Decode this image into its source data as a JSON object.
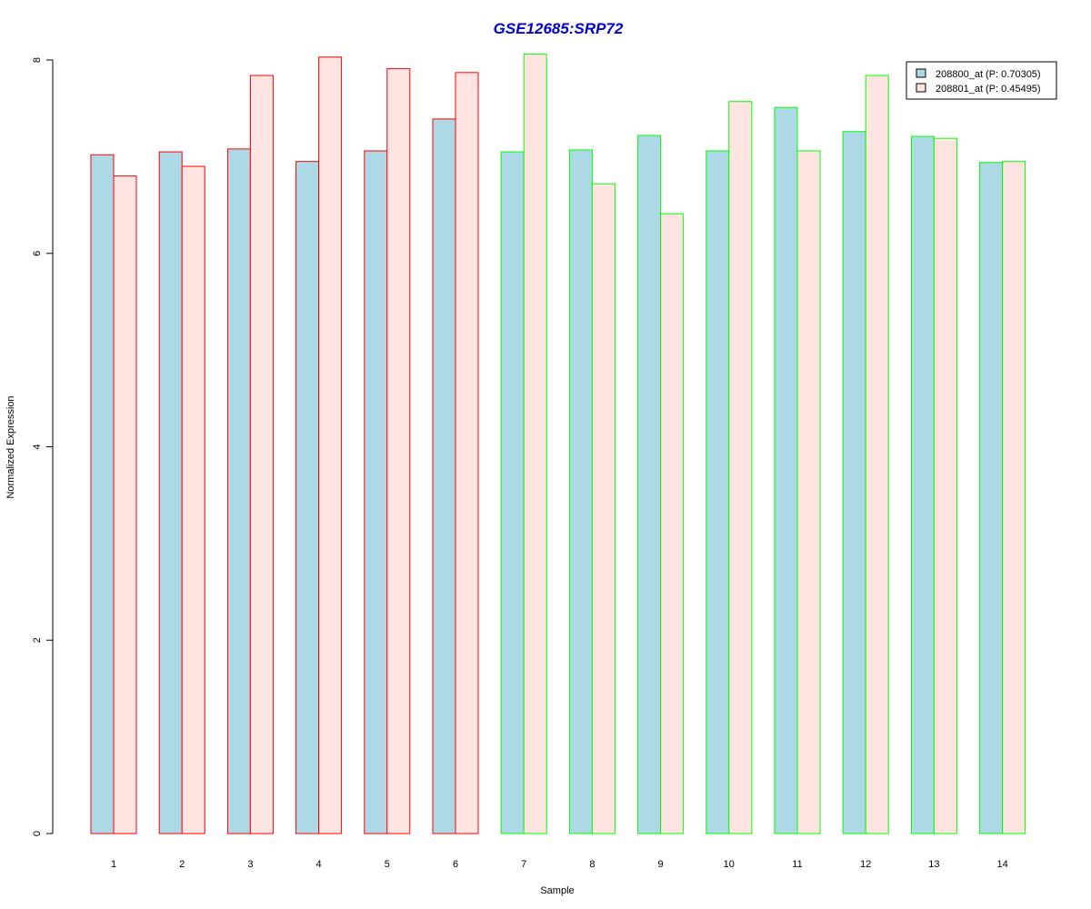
{
  "chart_data": {
    "type": "bar",
    "title": "GSE12685:SRP72",
    "xlabel": "Sample",
    "ylabel": "Normalized Expression",
    "categories": [
      "1",
      "2",
      "3",
      "4",
      "5",
      "6",
      "7",
      "8",
      "9",
      "10",
      "11",
      "12",
      "13",
      "14"
    ],
    "series": [
      {
        "name": "208800_at (P: 0.70305)",
        "values": [
          7.02,
          7.05,
          7.08,
          6.95,
          7.06,
          7.39,
          7.05,
          7.07,
          7.22,
          7.06,
          7.51,
          7.26,
          7.21,
          6.94
        ]
      },
      {
        "name": "208801_at (P: 0.45495)",
        "values": [
          6.8,
          6.9,
          7.84,
          8.03,
          7.91,
          7.87,
          8.06,
          6.72,
          6.41,
          7.57,
          7.06,
          7.84,
          7.19,
          6.95
        ]
      }
    ],
    "group_of_sample": [
      "a",
      "a",
      "a",
      "a",
      "a",
      "a",
      "b",
      "b",
      "b",
      "b",
      "b",
      "b",
      "b",
      "b"
    ],
    "y_ticks": [
      0,
      2,
      4,
      6,
      8
    ],
    "ylim": [
      0,
      8
    ],
    "legend_position": "top-right",
    "grid": false,
    "colors": {
      "series_fill": [
        "#add8e6",
        "#ffe4e1"
      ],
      "group_border": {
        "a": "#ff0000",
        "b": "#00ff00"
      },
      "title": "#0000cd"
    }
  }
}
